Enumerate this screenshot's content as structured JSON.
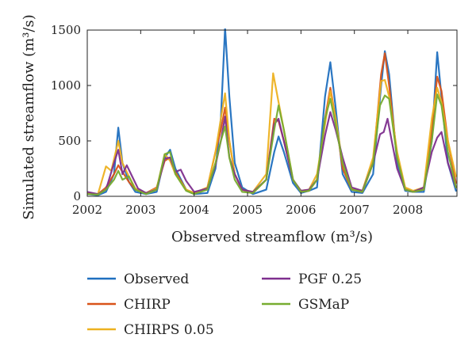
{
  "chart_data": {
    "type": "line",
    "xlabel": "Observed streamflow (m³/s)",
    "ylabel": "Simulated streamflow (m³/s)",
    "xlim": [
      2002,
      2008.92
    ],
    "ylim": [
      0,
      1500
    ],
    "x_ticks": [
      "2002",
      "2003",
      "2004",
      "2005",
      "2006",
      "2007",
      "2008"
    ],
    "y_ticks": [
      "0",
      "500",
      "1000",
      "1500"
    ],
    "grid": false,
    "legend_placement": "below",
    "series": [
      {
        "name": "Observed",
        "color": "#1f6fbf",
        "points": [
          [
            2002.0,
            20
          ],
          [
            2002.2,
            10
          ],
          [
            2002.35,
            40
          ],
          [
            2002.5,
            200
          ],
          [
            2002.58,
            620
          ],
          [
            2002.66,
            300
          ],
          [
            2002.78,
            130
          ],
          [
            2002.9,
            40
          ],
          [
            2003.1,
            20
          ],
          [
            2003.3,
            40
          ],
          [
            2003.45,
            350
          ],
          [
            2003.55,
            420
          ],
          [
            2003.65,
            250
          ],
          [
            2003.85,
            60
          ],
          [
            2004.0,
            20
          ],
          [
            2004.25,
            30
          ],
          [
            2004.4,
            250
          ],
          [
            2004.5,
            700
          ],
          [
            2004.58,
            1520
          ],
          [
            2004.66,
            900
          ],
          [
            2004.76,
            300
          ],
          [
            2004.9,
            80
          ],
          [
            2005.1,
            20
          ],
          [
            2005.35,
            60
          ],
          [
            2005.5,
            400
          ],
          [
            2005.58,
            540
          ],
          [
            2005.68,
            400
          ],
          [
            2005.85,
            120
          ],
          [
            2006.0,
            30
          ],
          [
            2006.15,
            50
          ],
          [
            2006.3,
            80
          ],
          [
            2006.45,
            900
          ],
          [
            2006.55,
            1210
          ],
          [
            2006.65,
            800
          ],
          [
            2006.78,
            200
          ],
          [
            2006.95,
            40
          ],
          [
            2007.15,
            30
          ],
          [
            2007.35,
            200
          ],
          [
            2007.5,
            1000
          ],
          [
            2007.57,
            1310
          ],
          [
            2007.65,
            1100
          ],
          [
            2007.8,
            300
          ],
          [
            2007.95,
            50
          ],
          [
            2008.1,
            40
          ],
          [
            2008.3,
            40
          ],
          [
            2008.45,
            500
          ],
          [
            2008.55,
            1300
          ],
          [
            2008.63,
            900
          ],
          [
            2008.75,
            300
          ],
          [
            2008.9,
            50
          ]
        ]
      },
      {
        "name": "CHIRP",
        "color": "#d95319",
        "points": [
          [
            2002.0,
            30
          ],
          [
            2002.2,
            20
          ],
          [
            2002.35,
            80
          ],
          [
            2002.5,
            200
          ],
          [
            2002.58,
            280
          ],
          [
            2002.66,
            220
          ],
          [
            2002.78,
            130
          ],
          [
            2002.9,
            60
          ],
          [
            2003.1,
            30
          ],
          [
            2003.3,
            80
          ],
          [
            2003.45,
            320
          ],
          [
            2003.55,
            350
          ],
          [
            2003.65,
            220
          ],
          [
            2003.85,
            60
          ],
          [
            2004.0,
            30
          ],
          [
            2004.25,
            80
          ],
          [
            2004.4,
            400
          ],
          [
            2004.5,
            600
          ],
          [
            2004.58,
            800
          ],
          [
            2004.66,
            500
          ],
          [
            2004.76,
            200
          ],
          [
            2004.9,
            60
          ],
          [
            2005.1,
            30
          ],
          [
            2005.35,
            150
          ],
          [
            2005.5,
            700
          ],
          [
            2005.58,
            680
          ],
          [
            2005.68,
            500
          ],
          [
            2005.85,
            150
          ],
          [
            2006.0,
            40
          ],
          [
            2006.15,
            50
          ],
          [
            2006.3,
            150
          ],
          [
            2006.45,
            700
          ],
          [
            2006.55,
            980
          ],
          [
            2006.65,
            700
          ],
          [
            2006.78,
            250
          ],
          [
            2006.95,
            60
          ],
          [
            2007.15,
            40
          ],
          [
            2007.35,
            300
          ],
          [
            2007.5,
            1100
          ],
          [
            2007.57,
            1290
          ],
          [
            2007.65,
            1000
          ],
          [
            2007.8,
            350
          ],
          [
            2007.95,
            70
          ],
          [
            2008.1,
            40
          ],
          [
            2008.3,
            60
          ],
          [
            2008.45,
            600
          ],
          [
            2008.55,
            1080
          ],
          [
            2008.63,
            950
          ],
          [
            2008.75,
            500
          ],
          [
            2008.9,
            120
          ]
        ]
      },
      {
        "name": "CHIRPS 0.05",
        "color": "#edb120",
        "points": [
          [
            2002.0,
            30
          ],
          [
            2002.2,
            20
          ],
          [
            2002.35,
            270
          ],
          [
            2002.45,
            230
          ],
          [
            2002.58,
            500
          ],
          [
            2002.66,
            300
          ],
          [
            2002.78,
            180
          ],
          [
            2002.9,
            70
          ],
          [
            2003.1,
            30
          ],
          [
            2003.3,
            70
          ],
          [
            2003.45,
            380
          ],
          [
            2003.55,
            320
          ],
          [
            2003.65,
            200
          ],
          [
            2003.85,
            60
          ],
          [
            2004.0,
            30
          ],
          [
            2004.25,
            80
          ],
          [
            2004.4,
            400
          ],
          [
            2004.5,
            700
          ],
          [
            2004.58,
            930
          ],
          [
            2004.66,
            500
          ],
          [
            2004.76,
            200
          ],
          [
            2004.9,
            60
          ],
          [
            2005.1,
            40
          ],
          [
            2005.35,
            200
          ],
          [
            2005.48,
            1110
          ],
          [
            2005.58,
            850
          ],
          [
            2005.68,
            600
          ],
          [
            2005.85,
            150
          ],
          [
            2006.0,
            50
          ],
          [
            2006.15,
            60
          ],
          [
            2006.3,
            200
          ],
          [
            2006.45,
            650
          ],
          [
            2006.55,
            950
          ],
          [
            2006.65,
            700
          ],
          [
            2006.78,
            300
          ],
          [
            2006.95,
            70
          ],
          [
            2007.15,
            50
          ],
          [
            2007.35,
            350
          ],
          [
            2007.5,
            1040
          ],
          [
            2007.57,
            1050
          ],
          [
            2007.65,
            900
          ],
          [
            2007.8,
            400
          ],
          [
            2007.95,
            80
          ],
          [
            2008.1,
            50
          ],
          [
            2008.3,
            80
          ],
          [
            2008.45,
            700
          ],
          [
            2008.55,
            980
          ],
          [
            2008.63,
            850
          ],
          [
            2008.75,
            500
          ],
          [
            2008.9,
            180
          ]
        ]
      },
      {
        "name": "PGF 0.25",
        "color": "#7e2f8e",
        "points": [
          [
            2002.0,
            40
          ],
          [
            2002.2,
            20
          ],
          [
            2002.35,
            60
          ],
          [
            2002.5,
            300
          ],
          [
            2002.58,
            420
          ],
          [
            2002.66,
            200
          ],
          [
            2002.74,
            280
          ],
          [
            2002.82,
            200
          ],
          [
            2002.95,
            70
          ],
          [
            2003.1,
            30
          ],
          [
            2003.3,
            60
          ],
          [
            2003.45,
            340
          ],
          [
            2003.55,
            350
          ],
          [
            2003.65,
            220
          ],
          [
            2003.75,
            240
          ],
          [
            2003.85,
            140
          ],
          [
            2004.0,
            40
          ],
          [
            2004.25,
            70
          ],
          [
            2004.4,
            280
          ],
          [
            2004.5,
            500
          ],
          [
            2004.58,
            720
          ],
          [
            2004.66,
            350
          ],
          [
            2004.76,
            200
          ],
          [
            2004.9,
            60
          ],
          [
            2005.1,
            40
          ],
          [
            2005.35,
            150
          ],
          [
            2005.5,
            650
          ],
          [
            2005.58,
            700
          ],
          [
            2005.68,
            500
          ],
          [
            2005.85,
            150
          ],
          [
            2006.0,
            50
          ],
          [
            2006.15,
            60
          ],
          [
            2006.3,
            150
          ],
          [
            2006.45,
            550
          ],
          [
            2006.55,
            760
          ],
          [
            2006.65,
            600
          ],
          [
            2006.78,
            350
          ],
          [
            2006.95,
            80
          ],
          [
            2007.15,
            50
          ],
          [
            2007.35,
            300
          ],
          [
            2007.48,
            560
          ],
          [
            2007.55,
            580
          ],
          [
            2007.62,
            700
          ],
          [
            2007.7,
            500
          ],
          [
            2007.8,
            250
          ],
          [
            2007.95,
            60
          ],
          [
            2008.1,
            40
          ],
          [
            2008.3,
            80
          ],
          [
            2008.45,
            400
          ],
          [
            2008.55,
            530
          ],
          [
            2008.63,
            580
          ],
          [
            2008.75,
            300
          ],
          [
            2008.9,
            80
          ]
        ]
      },
      {
        "name": "GSMaP",
        "color": "#77ac30",
        "points": [
          [
            2002.0,
            20
          ],
          [
            2002.2,
            15
          ],
          [
            2002.35,
            60
          ],
          [
            2002.5,
            150
          ],
          [
            2002.58,
            230
          ],
          [
            2002.66,
            150
          ],
          [
            2002.78,
            180
          ],
          [
            2002.9,
            60
          ],
          [
            2003.1,
            20
          ],
          [
            2003.3,
            60
          ],
          [
            2003.45,
            380
          ],
          [
            2003.55,
            400
          ],
          [
            2003.65,
            200
          ],
          [
            2003.85,
            50
          ],
          [
            2004.0,
            20
          ],
          [
            2004.25,
            60
          ],
          [
            2004.4,
            300
          ],
          [
            2004.5,
            500
          ],
          [
            2004.58,
            630
          ],
          [
            2004.66,
            350
          ],
          [
            2004.76,
            150
          ],
          [
            2004.9,
            40
          ],
          [
            2005.1,
            30
          ],
          [
            2005.35,
            150
          ],
          [
            2005.5,
            600
          ],
          [
            2005.58,
            820
          ],
          [
            2005.68,
            600
          ],
          [
            2005.85,
            150
          ],
          [
            2006.0,
            40
          ],
          [
            2006.15,
            50
          ],
          [
            2006.3,
            150
          ],
          [
            2006.45,
            700
          ],
          [
            2006.55,
            880
          ],
          [
            2006.65,
            650
          ],
          [
            2006.78,
            300
          ],
          [
            2006.95,
            60
          ],
          [
            2007.15,
            40
          ],
          [
            2007.35,
            300
          ],
          [
            2007.48,
            820
          ],
          [
            2007.57,
            910
          ],
          [
            2007.65,
            880
          ],
          [
            2007.8,
            350
          ],
          [
            2007.95,
            60
          ],
          [
            2008.1,
            40
          ],
          [
            2008.3,
            60
          ],
          [
            2008.45,
            500
          ],
          [
            2008.55,
            920
          ],
          [
            2008.63,
            820
          ],
          [
            2008.75,
            400
          ],
          [
            2008.9,
            80
          ]
        ]
      }
    ]
  }
}
